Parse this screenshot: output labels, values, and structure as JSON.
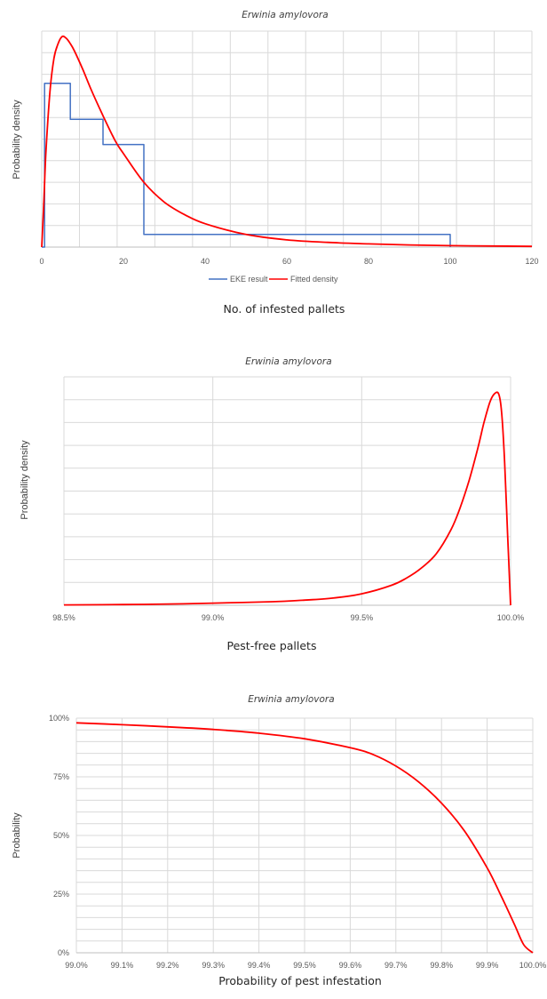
{
  "colors": {
    "eke": "#4472c4",
    "fitted": "#ff0000",
    "grid": "#d9d9d9",
    "axis": "#bfbfbf"
  },
  "chart_data": [
    {
      "type": "line",
      "title": "Erwinia amylovora",
      "xlabel": "No. of infested pallets",
      "ylabel": "Probability density",
      "xlim": [
        0,
        120
      ],
      "x_ticks": [
        "0",
        "20",
        "40",
        "60",
        "80",
        "100",
        "120"
      ],
      "grid": true,
      "legend_position": "bottom",
      "series": [
        {
          "name": "EKE result",
          "kind": "step",
          "color": "#4472c4",
          "x": [
            0,
            0.7,
            0.7,
            7,
            7,
            15,
            15,
            25,
            25,
            100,
            100
          ],
          "y": [
            0,
            0,
            0.0455,
            0.0455,
            0.0355,
            0.0355,
            0.0285,
            0.0285,
            0.0035,
            0.0035,
            0
          ]
        },
        {
          "name": "Fitted density",
          "kind": "line",
          "color": "#ff0000",
          "x": [
            0,
            0.5,
            1,
            2,
            3,
            4,
            5,
            6,
            7,
            8,
            10,
            12,
            15,
            18,
            20,
            25,
            30,
            35,
            40,
            50,
            60,
            70,
            80,
            90,
            100,
            110,
            120
          ],
          "y": [
            0,
            0.012,
            0.026,
            0.043,
            0.0525,
            0.0565,
            0.0585,
            0.058,
            0.0565,
            0.0545,
            0.0495,
            0.044,
            0.0365,
            0.0295,
            0.026,
            0.018,
            0.0125,
            0.009,
            0.0065,
            0.0035,
            0.002,
            0.0013,
            0.0009,
            0.0006,
            0.0004,
            0.0003,
            0.0002
          ]
        }
      ],
      "ylim": [
        0,
        0.06
      ]
    },
    {
      "type": "line",
      "title": "Erwinia amylovora",
      "xlabel": "Pest-free pallets",
      "ylabel": "Probability density",
      "xlim": [
        98.5,
        100
      ],
      "x_ticks": [
        "98.5%",
        "99.0%",
        "99.5%",
        "100.0%"
      ],
      "x_tick_values": [
        98.5,
        99.0,
        99.5,
        100.0
      ],
      "grid": true,
      "series": [
        {
          "kind": "line",
          "color": "#ff0000",
          "x": [
            98.5,
            98.7,
            98.9,
            99.0,
            99.2,
            99.3,
            99.4,
            99.5,
            99.6,
            99.65,
            99.7,
            99.75,
            99.8,
            99.83,
            99.86,
            99.89,
            99.91,
            99.93,
            99.945,
            99.96,
            99.97,
            99.98,
            99.99,
            100.0
          ],
          "y": [
            0.05,
            0.1,
            0.2,
            0.3,
            0.5,
            0.7,
            1.0,
            1.6,
            2.8,
            3.8,
            5.2,
            7.2,
            10.6,
            13.6,
            17.4,
            22.0,
            25.5,
            28.4,
            29.6,
            29.6,
            27.0,
            20.0,
            10.0,
            0
          ]
        }
      ],
      "ylim": [
        0,
        32
      ]
    },
    {
      "type": "line",
      "title": "Erwinia amylovora",
      "xlabel": "Probability of pest infestation",
      "ylabel": "Probability",
      "xlim": [
        99.0,
        100.0
      ],
      "ylim": [
        0,
        100
      ],
      "x_ticks": [
        "99.0%",
        "99.1%",
        "99.2%",
        "99.3%",
        "99.4%",
        "99.5%",
        "99.6%",
        "99.7%",
        "99.8%",
        "99.9%",
        "100.0%"
      ],
      "x_tick_values": [
        99.0,
        99.1,
        99.2,
        99.3,
        99.4,
        99.5,
        99.6,
        99.7,
        99.8,
        99.9,
        100.0
      ],
      "y_ticks": [
        "0%",
        "25%",
        "50%",
        "75%",
        "100%"
      ],
      "y_tick_values": [
        0,
        25,
        50,
        75,
        100
      ],
      "grid": true,
      "series": [
        {
          "kind": "line",
          "color": "#ff0000",
          "x": [
            99.0,
            99.1,
            99.2,
            99.3,
            99.4,
            99.5,
            99.6,
            99.65,
            99.7,
            99.75,
            99.8,
            99.85,
            99.9,
            99.93,
            99.96,
            99.98,
            100.0
          ],
          "y": [
            98,
            97.2,
            96.3,
            95.2,
            93.6,
            91.2,
            87.4,
            84.5,
            79.6,
            72.8,
            63.8,
            52.0,
            36.2,
            24.5,
            12.0,
            3.5,
            0
          ]
        }
      ]
    }
  ]
}
